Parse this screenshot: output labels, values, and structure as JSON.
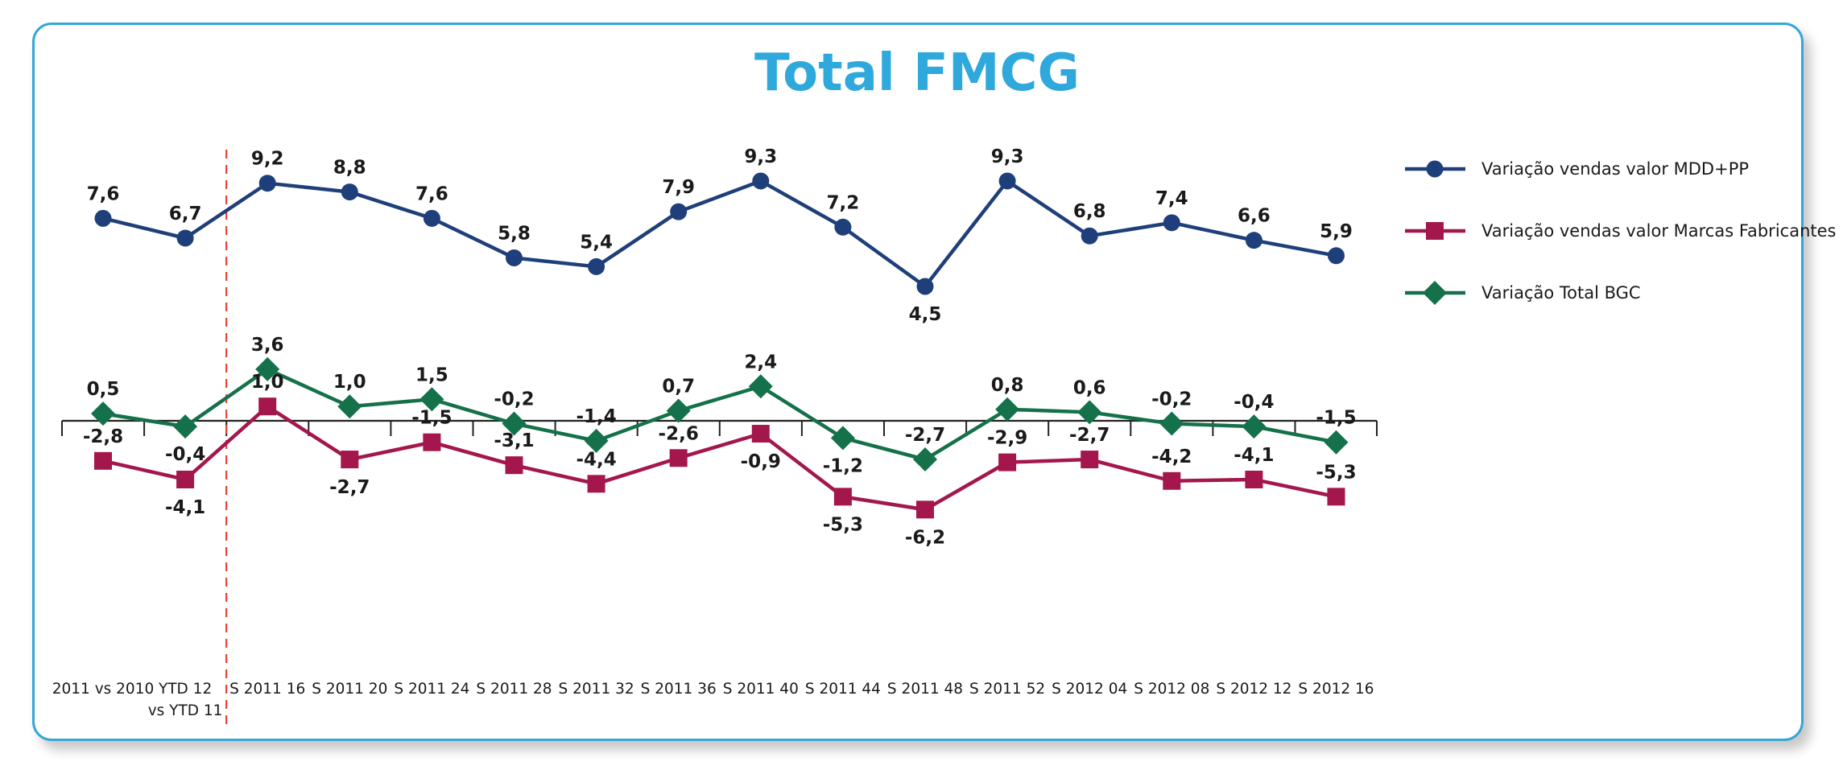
{
  "chart_data": {
    "type": "line",
    "title": "Total FMCG",
    "title_color": "#2fa8dc",
    "categories": [
      [
        "2011 vs 2010"
      ],
      [
        "YTD 12",
        "vs YTD 11"
      ],
      [
        "S 2011 16"
      ],
      [
        "S 2011 20"
      ],
      [
        "S 2011 24"
      ],
      [
        "S 2011 28"
      ],
      [
        "S 2011 32"
      ],
      [
        "S 2011 36"
      ],
      [
        "S 2011 40"
      ],
      [
        "S 2011 44"
      ],
      [
        "S 2011 48"
      ],
      [
        "S 2011 52"
      ],
      [
        "S 2012 04"
      ],
      [
        "S 2012 08"
      ],
      [
        "S 2012 12"
      ],
      [
        "S 2012 16"
      ]
    ],
    "series": [
      {
        "name": "Variação vendas valor MDD+PP",
        "color": "#1f3f7a",
        "marker": "circle",
        "values": [
          7.6,
          6.7,
          9.2,
          8.8,
          7.6,
          5.8,
          5.4,
          7.9,
          9.3,
          7.2,
          4.5,
          9.3,
          6.8,
          7.4,
          6.6,
          5.9
        ],
        "labels": [
          "7,6",
          "6,7",
          "9,2",
          "8,8",
          "7,6",
          "5,8",
          "5,4",
          "7,9",
          "9,3",
          "7,2",
          "4,5",
          "9,3",
          "6,8",
          "7,4",
          "6,6",
          "5,9"
        ],
        "label_pos": [
          "above",
          "above",
          "above",
          "above",
          "above",
          "above",
          "above",
          "above",
          "above",
          "above",
          "below",
          "above",
          "above",
          "above",
          "above",
          "above"
        ]
      },
      {
        "name": "Variação vendas valor Marcas Fabricantes",
        "color": "#a3174d",
        "marker": "square",
        "values": [
          -2.8,
          -4.1,
          1.0,
          -2.7,
          -1.5,
          -3.1,
          -4.4,
          -2.6,
          -0.9,
          -5.3,
          -6.2,
          -2.9,
          -2.7,
          -4.2,
          -4.1,
          -5.3
        ],
        "labels": [
          "-2,8",
          "-4,1",
          "1,0",
          "-2,7",
          "-1,5",
          "-3,1",
          "-4,4",
          "-2,6",
          "-0,9",
          "-5,3",
          "-6,2",
          "-2,9",
          "-2,7",
          "-4,2",
          "-4,1",
          "-5,3"
        ],
        "label_pos": [
          "above",
          "below",
          "above",
          "below",
          "above",
          "above",
          "above",
          "above",
          "below",
          "below",
          "below",
          "above",
          "above",
          "above",
          "above",
          "above"
        ]
      },
      {
        "name": "Variação Total BGC",
        "color": "#14714a",
        "marker": "diamond",
        "values": [
          0.5,
          -0.4,
          3.6,
          1.0,
          1.5,
          -0.2,
          -1.4,
          0.7,
          2.4,
          -1.2,
          -2.7,
          0.8,
          0.6,
          -0.2,
          -0.4,
          -1.5
        ],
        "labels": [
          "0,5",
          "-0,4",
          "3,6",
          "1,0",
          "1,5",
          "-0,2",
          "-1,4",
          "0,7",
          "2,4",
          "-1,2",
          "-2,7",
          "0,8",
          "0,6",
          "-0,2",
          "-0,4",
          "-1,5"
        ],
        "label_pos": [
          "above",
          "below",
          "above",
          "above",
          "above",
          "above",
          "above",
          "above",
          "above",
          "below",
          "above",
          "above",
          "above",
          "above",
          "above",
          "above"
        ]
      }
    ],
    "divider_after_category": 1,
    "divider_color": "#e8412e",
    "axis_line_at": 0,
    "legend_position": "right",
    "grid": false
  }
}
